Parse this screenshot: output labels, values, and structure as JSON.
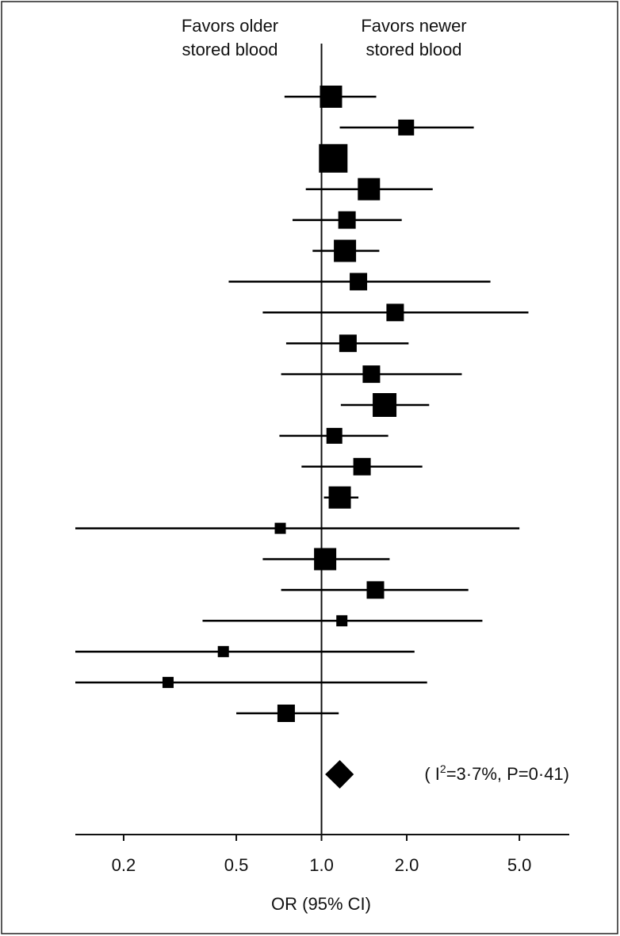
{
  "chart_data": {
    "type": "forest",
    "header_left": [
      "Favors older",
      "stored blood"
    ],
    "header_right": [
      "Favors newer",
      "stored blood"
    ],
    "x_label": "OR (95% CI)",
    "log_x": true,
    "xlim": [
      0.135,
      7.5
    ],
    "xticks": [
      0.2,
      0.5,
      {
        "value": 1,
        "label": "1.0"
      },
      {
        "value": 2,
        "label": "2.0"
      },
      {
        "value": 5,
        "label": "5.0"
      }
    ],
    "reference": 1,
    "color": "#000000",
    "values": [
      1.08,
      1.99,
      1.1,
      1.47,
      1.23,
      1.21,
      1.35,
      1.82,
      1.24,
      1.5,
      1.67,
      1.11,
      1.39,
      1.16,
      0.715,
      1.03,
      1.55,
      1.18,
      0.45,
      0.287,
      0.75
    ],
    "ci_low": [
      0.74,
      1.16,
      0.99,
      0.88,
      0.79,
      0.93,
      0.47,
      0.62,
      0.75,
      0.72,
      1.17,
      0.71,
      0.85,
      1.02,
      0.135,
      0.62,
      0.72,
      0.38,
      0.135,
      0.135,
      0.5
    ],
    "ci_high": [
      1.56,
      3.45,
      1.22,
      2.47,
      1.92,
      1.6,
      3.95,
      5.38,
      2.03,
      3.13,
      2.4,
      1.72,
      2.27,
      1.35,
      5.0,
      1.74,
      3.3,
      3.7,
      2.13,
      2.36,
      1.15
    ],
    "weights": [
      28,
      20,
      36,
      28,
      22,
      28,
      22,
      22,
      22,
      22,
      30,
      20,
      22,
      28,
      14,
      28,
      22,
      14,
      14,
      14,
      22
    ],
    "pooled": {
      "value": 1.16,
      "ci_low": 1.03,
      "ci_high": 1.3
    },
    "annotation": {
      "prefix": "( I",
      "sup": "2",
      "suffix": "=3·7%, P=0·41)"
    }
  }
}
